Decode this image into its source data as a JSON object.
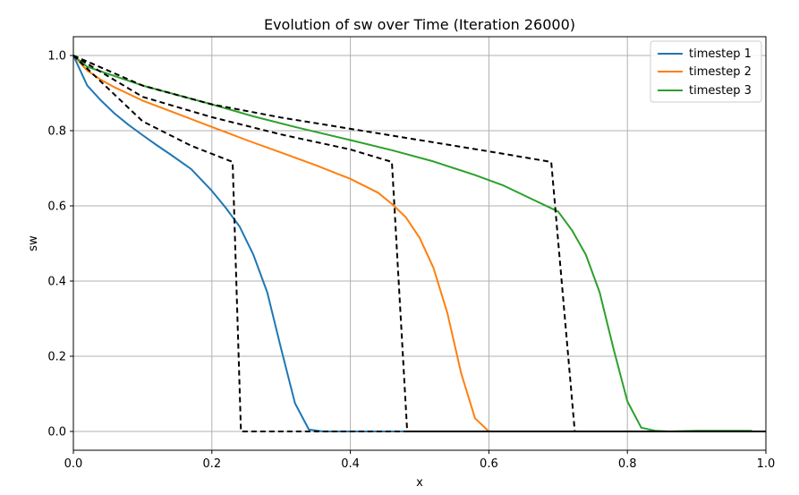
{
  "chart_data": {
    "type": "line",
    "title": "Evolution of sw over Time (Iteration 26000)",
    "xlabel": "x",
    "ylabel": "sw",
    "xlim": [
      0.0,
      1.0
    ],
    "ylim": [
      -0.05,
      1.05
    ],
    "xticks": [
      "0.0",
      "0.2",
      "0.4",
      "0.6",
      "0.8",
      "1.0"
    ],
    "xtick_values": [
      0.0,
      0.2,
      0.4,
      0.6,
      0.8,
      1.0
    ],
    "yticks": [
      "0.0",
      "0.2",
      "0.4",
      "0.6",
      "0.8",
      "1.0"
    ],
    "ytick_values": [
      0.0,
      0.2,
      0.4,
      0.6,
      0.8,
      1.0
    ],
    "grid": true,
    "legend_position": "top-right",
    "series": [
      {
        "name": "timestep 1",
        "color": "#1f77b4",
        "style": "solid",
        "x": [
          0.0,
          0.02,
          0.04,
          0.06,
          0.08,
          0.1,
          0.12,
          0.14,
          0.17,
          0.2,
          0.22,
          0.24,
          0.26,
          0.28,
          0.3,
          0.32,
          0.34,
          0.36,
          0.4,
          0.5,
          0.6,
          0.7,
          0.8,
          0.9,
          0.98
        ],
        "y": [
          1.0,
          0.92,
          0.88,
          0.845,
          0.815,
          0.788,
          0.762,
          0.737,
          0.698,
          0.64,
          0.595,
          0.545,
          0.47,
          0.37,
          0.22,
          0.075,
          0.005,
          0.0,
          0.0,
          0.0,
          0.0,
          0.0,
          0.0,
          0.0,
          0.0
        ]
      },
      {
        "name": "timestep 2",
        "color": "#ff7f0e",
        "style": "solid",
        "x": [
          0.0,
          0.02,
          0.04,
          0.06,
          0.1,
          0.15,
          0.2,
          0.25,
          0.3,
          0.35,
          0.4,
          0.44,
          0.46,
          0.48,
          0.5,
          0.52,
          0.54,
          0.56,
          0.58,
          0.6,
          0.7,
          0.8,
          0.9,
          0.98
        ],
        "y": [
          1.0,
          0.96,
          0.935,
          0.915,
          0.88,
          0.845,
          0.81,
          0.775,
          0.742,
          0.708,
          0.672,
          0.635,
          0.605,
          0.57,
          0.515,
          0.435,
          0.315,
          0.155,
          0.035,
          0.0,
          0.0,
          0.0,
          0.0,
          0.0
        ]
      },
      {
        "name": "timestep 3",
        "color": "#2ca02c",
        "style": "solid",
        "x": [
          0.0,
          0.02,
          0.06,
          0.1,
          0.15,
          0.2,
          0.26,
          0.32,
          0.4,
          0.46,
          0.52,
          0.58,
          0.62,
          0.66,
          0.7,
          0.72,
          0.74,
          0.76,
          0.78,
          0.8,
          0.82,
          0.84,
          0.86,
          0.9,
          0.98
        ],
        "y": [
          1.0,
          0.97,
          0.945,
          0.92,
          0.895,
          0.87,
          0.838,
          0.81,
          0.775,
          0.748,
          0.718,
          0.682,
          0.655,
          0.62,
          0.585,
          0.535,
          0.47,
          0.37,
          0.22,
          0.08,
          0.01,
          0.002,
          0.0,
          0.002,
          0.002
        ]
      },
      {
        "name": "",
        "color": "#000000",
        "style": "dashed",
        "x": [
          0.0,
          0.1,
          0.17,
          0.23,
          0.242,
          1.0
        ],
        "y": [
          1.0,
          0.825,
          0.76,
          0.717,
          0.0,
          0.0
        ]
      },
      {
        "name": "",
        "color": "#000000",
        "style": "dashed",
        "x": [
          0.0,
          0.1,
          0.2,
          0.3,
          0.4,
          0.46,
          0.482,
          1.0
        ],
        "y": [
          1.0,
          0.89,
          0.836,
          0.79,
          0.75,
          0.717,
          0.0,
          0.0
        ]
      },
      {
        "name": "",
        "color": "#000000",
        "style": "dashed",
        "x": [
          0.0,
          0.1,
          0.2,
          0.3,
          0.4,
          0.5,
          0.6,
          0.69,
          0.724,
          1.0
        ],
        "y": [
          1.0,
          0.92,
          0.87,
          0.835,
          0.805,
          0.775,
          0.745,
          0.717,
          0.0,
          0.0
        ]
      }
    ]
  }
}
